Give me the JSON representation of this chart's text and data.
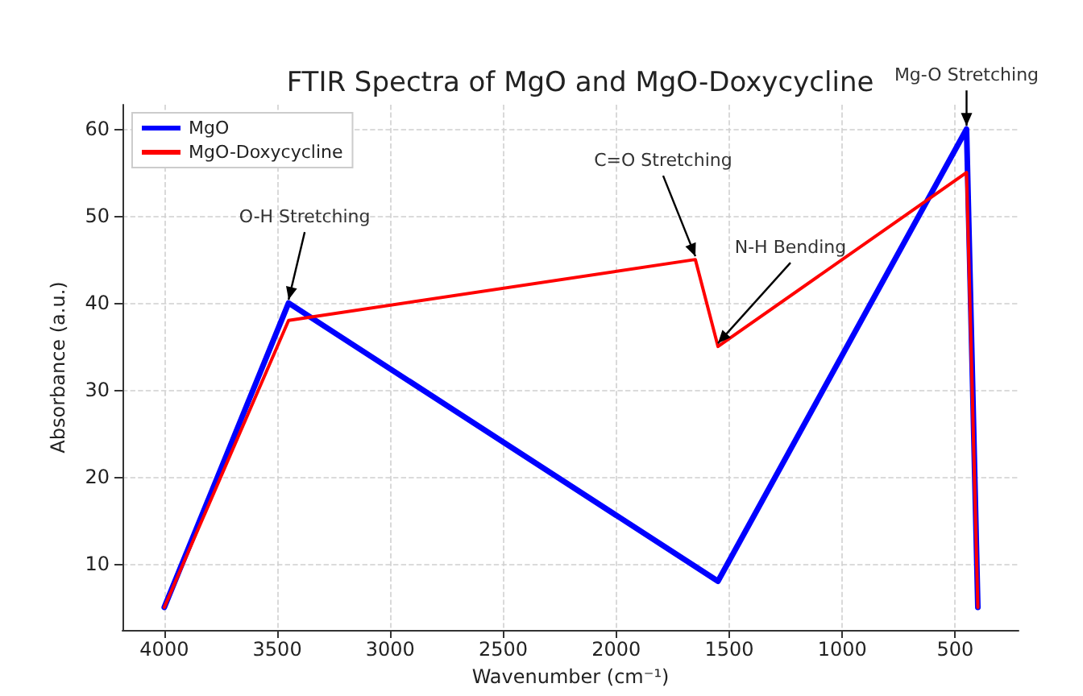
{
  "chart_data": {
    "type": "line",
    "title": "FTIR Spectra of MgO and MgO-Doxycycline",
    "xlabel": "Wavenumber (cm⁻¹)",
    "ylabel": "Absorbance (a.u.)",
    "series": [
      {
        "name": "MgO",
        "color": "#0000ff",
        "x": [
          4000,
          3450,
          1550,
          450,
          400
        ],
        "values": [
          5,
          40,
          8,
          60,
          5
        ]
      },
      {
        "name": "MgO-Doxycycline",
        "color": "#ff0000",
        "x": [
          4000,
          3450,
          1650,
          1550,
          450,
          400
        ],
        "values": [
          5,
          38,
          45,
          35,
          55,
          5
        ]
      }
    ],
    "xlim": [
      4185,
      220
    ],
    "xticks": [
      4000,
      3500,
      3000,
      2500,
      2000,
      1500,
      1000,
      500
    ],
    "ylim": [
      2.4,
      62.8
    ],
    "yticks": [
      10,
      20,
      30,
      40,
      50,
      60
    ],
    "annotations": [
      {
        "text": "O-H Stretching",
        "x": 3450,
        "y": 40
      },
      {
        "text": "C=O Stretching",
        "x": 1650,
        "y": 45
      },
      {
        "text": "N-H Bending",
        "x": 1550,
        "y": 35
      },
      {
        "text": "Mg-O Stretching",
        "x": 450,
        "y": 60
      }
    ],
    "grid": true,
    "legend": "top left",
    "marker": "none",
    "line_style": "solid"
  }
}
